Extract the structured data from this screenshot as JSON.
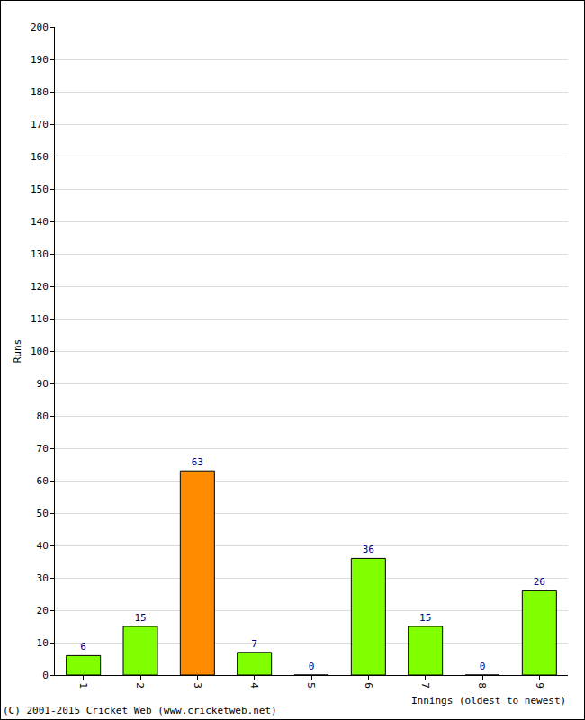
{
  "chart_data": {
    "type": "bar",
    "categories": [
      "1",
      "2",
      "3",
      "4",
      "5",
      "6",
      "7",
      "8",
      "9"
    ],
    "values": [
      6,
      15,
      63,
      7,
      0,
      36,
      15,
      0,
      26
    ],
    "colors": [
      "#80ff00",
      "#80ff00",
      "#ff8c00",
      "#80ff00",
      "#80ff00",
      "#80ff00",
      "#80ff00",
      "#80ff00",
      "#80ff00"
    ],
    "ylabel": "Runs",
    "xlabel": "Innings (oldest to newest)",
    "annotations": [
      "(C) 2001-2015 Cricket Web (www.cricketweb.net)"
    ],
    "ylim": [
      0,
      200
    ],
    "yticks": [
      0,
      10,
      20,
      30,
      40,
      50,
      60,
      70,
      80,
      90,
      100,
      110,
      120,
      130,
      140,
      150,
      160,
      170,
      180,
      190,
      200
    ],
    "grid": true,
    "data_labels": true
  }
}
